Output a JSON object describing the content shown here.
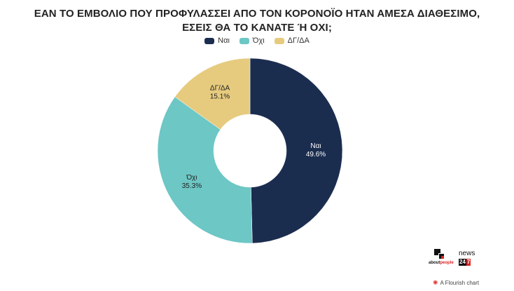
{
  "title": "ΕΑΝ ΤΟ ΕΜΒΟΛΙΟ ΠΟΥ ΠΡΟΦΥΛΑΣΣΕΙ ΑΠΟ ΤΟΝ ΚΟΡΟΝΟΪΟ ΗΤΑΝ ΑΜΕΣΑ ΔΙΑΘΕΣΙΜΟ, ΕΣΕΙΣ ΘΑ ΤΟ ΚΑΝΑΤΕ Ή ΟΧΙ;",
  "chart_data": {
    "type": "pie",
    "title": "ΕΑΝ ΤΟ ΕΜΒΟΛΙΟ ΠΟΥ ΠΡΟΦΥΛΑΣΣΕΙ ΑΠΟ ΤΟΝ ΚΟΡΟΝΟΪΟ ΗΤΑΝ ΑΜΕΣΑ ΔΙΑΘΕΣΙΜΟ, ΕΣΕΙΣ ΘΑ ΤΟ ΚΑΝΑΤΕ Ή ΟΧΙ;",
    "donut": true,
    "legend_position": "top-center",
    "categories": [
      "Ναι",
      "Όχι",
      "ΔΓ/ΔΑ"
    ],
    "values": [
      49.6,
      35.3,
      15.1
    ],
    "value_labels": [
      "49.6%",
      "35.3%",
      "15.1%"
    ],
    "colors": [
      "#1b2d4f",
      "#6cc7c5",
      "#e6cb7f"
    ]
  },
  "legend": [
    {
      "label": "Ναι",
      "color": "#1b2d4f"
    },
    {
      "label": "Όχι",
      "color": "#6cc7c5"
    },
    {
      "label": "ΔΓ/ΔΑ",
      "color": "#e6cb7f"
    }
  ],
  "logos": {
    "aboutpeople_prefix": "about",
    "aboutpeople_suffix": "people",
    "news_text": "news",
    "news_badge_a": "24",
    "news_badge_b": "7"
  },
  "footer": {
    "flourish_icon": "flourish-icon",
    "flourish_text": "A Flourish chart"
  }
}
